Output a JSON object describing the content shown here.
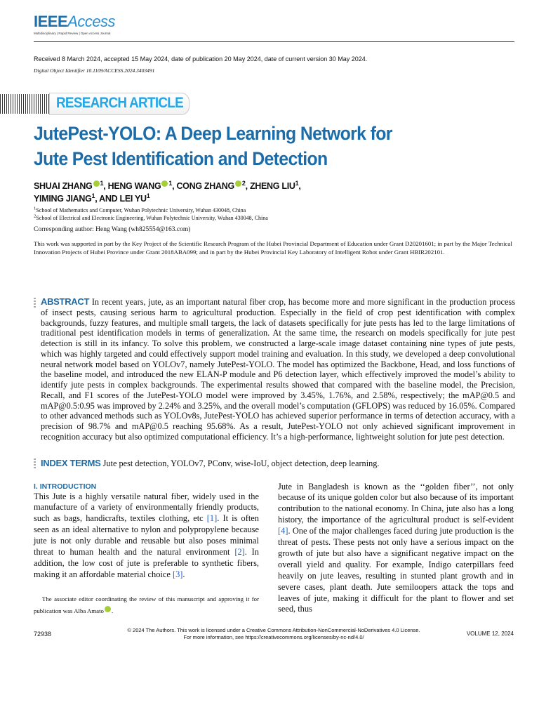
{
  "header": {
    "logo_bold": "IEEE",
    "logo_italic": "Access",
    "logo_tagline": "Multidisciplinary | Rapid Review | Open Access Journal",
    "received": "Received 8 March 2024, accepted 15 May 2024, date of publication 20 May 2024, date of current version 30 May 2024.",
    "doi": "Digital Object Identifier 10.1109/ACCESS.2024.3403491",
    "article_type": "RESEARCH ARTICLE",
    "orcid_color": "#a6ce39",
    "accent_color": "#1b6ca8"
  },
  "title_line1": "JutePest-YOLO: A Deep Learning Network for",
  "title_line2": "Jute Pest Identification and Detection",
  "authors": [
    {
      "name": "SHUAI ZHANG",
      "orcid": true,
      "aff": "1",
      "sep": ", "
    },
    {
      "name": "HENG WANG",
      "orcid": true,
      "aff": "1",
      "sep": ", "
    },
    {
      "name": "CONG ZHANG",
      "orcid": true,
      "aff": "2",
      "sep": ", "
    },
    {
      "name": "ZHENG LIU",
      "orcid": false,
      "aff": "1",
      "sep": ","
    },
    {
      "name": "YIMING JIANG",
      "orcid": false,
      "aff": "1",
      "sep": ", "
    },
    {
      "name": "AND LEI YU",
      "orcid": false,
      "aff": "1",
      "sep": ""
    }
  ],
  "affiliations": [
    {
      "num": "1",
      "text": "School of Mathematics and Computer, Wuhan Polytechnic University, Wuhan 430048, China"
    },
    {
      "num": "2",
      "text": "School of Electrical and Electronic Engineering, Wuhan Polytechnic University, Wuhan 430048, China"
    }
  ],
  "corresponding": "Corresponding author: Heng Wang (wh825554@163.com)",
  "funding": "This work was supported in part by the Key Project of the Scientific Research Program of the Hubei Provincial Department of Education under Grant D20201601; in part by the Major Technical Innovation Projects of Hubei Province under Grant 2018ABA099; and in part by the Hubei Provincial Key Laboratory of Intelligent Robot under Grant HBIR202101.",
  "abstract": {
    "label": "ABSTRACT",
    "text": "In recent years, jute, as an important natural fiber crop, has become more and more significant in the production process of insect pests, causing serious harm to agricultural production. Especially in the field of crop pest identification with complex backgrounds, fuzzy features, and multiple small targets, the lack of datasets specifically for jute pests has led to the large limitations of traditional pest identification models in terms of generalization. At the same time, the research on models specifically for jute pest detection is still in its infancy. To solve this problem, we constructed a large-scale image dataset containing nine types of jute pests, which was highly targeted and could effectively support model training and evaluation. In this study, we developed a deep convolutional neural network model based on YOLOv7, namely JutePest-YOLO. The model has optimized the Backbone, Head, and loss functions of the baseline model, and introduced the new ELAN-P module and P6 detection layer, which effectively improved the model’s ability to identify jute pests in complex backgrounds. The experimental results showed that compared with the baseline model, the Precision, Recall, and F1 scores of the JutePest-YOLO model were improved by 3.45%, 1.76%, and 2.58%, respectively; the mAP@0.5 and mAP@0.5:0.95 was improved by 2.24% and 3.25%, and the overall model’s computation (GFLOPS) was reduced by 16.05%. Compared to other advanced methods such as YOLOv8s, JutePest-YOLO has achieved superior performance in terms of detection accuracy, with a precision of 98.7% and mAP@0.5 reaching 95.68%. As a result, JutePest-YOLO not only achieved significant improvement in recognition accuracy but also optimized computational efficiency. It’s a high-performance, lightweight solution for jute pest detection."
  },
  "index_terms": {
    "label": "INDEX TERMS",
    "text": "Jute pest detection, YOLOv7, PConv, wise-IoU, object detection, deep learning."
  },
  "intro": {
    "heading": "I. INTRODUCTION",
    "left": [
      {
        "t": "This Jute is a highly versatile natural fiber, widely used in the manufacture of a variety of environmentally friendly products, such as bags, handicrafts, textiles clothing, etc "
      },
      {
        "t": "[1]",
        "link": true
      },
      {
        "t": ". It is often seen as an ideal alternative to nylon and polypropylene because jute is not only durable and reusable but also poses minimal threat to human health and the natural environment "
      },
      {
        "t": "[2]",
        "link": true
      },
      {
        "t": ". In addition, the low cost of jute is preferable to synthetic fibers, making it an affordable material choice "
      },
      {
        "t": "[3]",
        "link": true
      },
      {
        "t": "."
      }
    ],
    "right": [
      {
        "t": "Jute in Bangladesh is known as the ‘‘golden fiber’’, not only because of its unique golden color but also because of its important contribution to the national economy. In China, jute also has a long history, the importance of the agricultural product is self-evident "
      },
      {
        "t": "[4]",
        "link": true
      },
      {
        "t": ". One of the major challenges faced during jute production is the threat of pests. These pests not only have a serious impact on the growth of jute but also have a significant negative impact on the overall yield and quality. For example, Indigo caterpillars feed heavily on jute leaves, resulting in stunted plant growth and in severe cases, plant death. Jute semiloopers attack the tops and leaves of jute, making it difficult for the plant to flower and set seed, thus"
      }
    ]
  },
  "footnote": "The associate editor coordinating the review of this manuscript and approving it for publication was Alba Amato",
  "footer": {
    "page": "72938",
    "license_line1": "© 2024 The Authors. This work is licensed under a Creative Commons Attribution-NonCommercial-NoDerivatives 4.0 License.",
    "license_line2": "For more information, see https://creativecommons.org/licenses/by-nc-nd/4.0/",
    "volume": "VOLUME 12, 2024"
  }
}
